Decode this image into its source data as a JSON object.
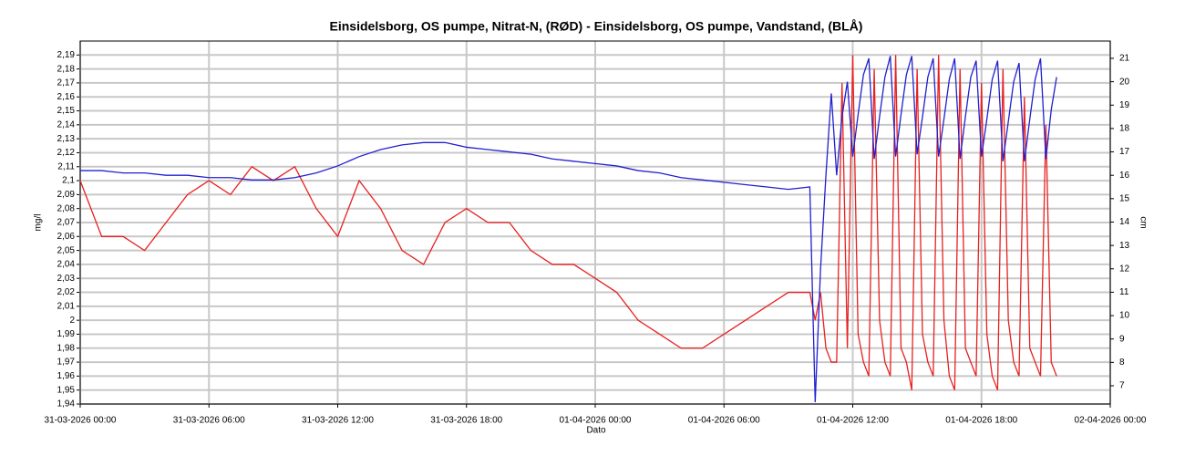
{
  "chart_data": {
    "type": "line",
    "title": "Einsidelsborg, OS pumpe, Nitrat-N, (RØD)  -  Einsidelsborg, OS pumpe, Vandstand, (BLÅ)",
    "xlabel": "Dato",
    "ylabel": "mg/l",
    "y2label": "cm",
    "x": [
      "31-03-2026 00:00",
      "31-03-2026 01:00",
      "31-03-2026 02:00",
      "31-03-2026 03:00",
      "31-03-2026 04:00",
      "31-03-2026 05:00",
      "31-03-2026 06:00",
      "31-03-2026 07:00",
      "31-03-2026 08:00",
      "31-03-2026 09:00",
      "31-03-2026 10:00",
      "31-03-2026 11:00",
      "31-03-2026 12:00",
      "31-03-2026 13:00",
      "31-03-2026 14:00",
      "31-03-2026 15:00",
      "31-03-2026 16:00",
      "31-03-2026 17:00",
      "31-03-2026 18:00",
      "31-03-2026 19:00",
      "31-03-2026 20:00",
      "31-03-2026 21:00",
      "31-03-2026 22:00",
      "31-03-2026 23:00",
      "01-04-2026 00:00",
      "01-04-2026 01:00",
      "01-04-2026 02:00",
      "01-04-2026 03:00",
      "01-04-2026 04:00",
      "01-04-2026 05:00",
      "01-04-2026 06:00",
      "01-04-2026 07:00",
      "01-04-2026 08:00",
      "01-04-2026 09:00",
      "01-04-2026 10:00",
      "01-04-2026 10:15",
      "01-04-2026 10:30",
      "01-04-2026 10:45",
      "01-04-2026 11:00",
      "01-04-2026 11:15",
      "01-04-2026 11:30",
      "01-04-2026 11:45",
      "01-04-2026 12:00",
      "01-04-2026 12:15",
      "01-04-2026 12:30",
      "01-04-2026 12:45",
      "01-04-2026 13:00",
      "01-04-2026 13:15",
      "01-04-2026 13:30",
      "01-04-2026 13:45",
      "01-04-2026 14:00",
      "01-04-2026 14:15",
      "01-04-2026 14:30",
      "01-04-2026 14:45",
      "01-04-2026 15:00",
      "01-04-2026 15:15",
      "01-04-2026 15:30",
      "01-04-2026 15:45",
      "01-04-2026 16:00",
      "01-04-2026 16:15",
      "01-04-2026 16:30",
      "01-04-2026 16:45",
      "01-04-2026 17:00",
      "01-04-2026 17:15",
      "01-04-2026 17:30",
      "01-04-2026 17:45",
      "01-04-2026 18:00",
      "01-04-2026 18:15",
      "01-04-2026 18:30",
      "01-04-2026 18:45",
      "01-04-2026 19:00",
      "01-04-2026 19:15",
      "01-04-2026 19:30",
      "01-04-2026 19:45",
      "01-04-2026 20:00",
      "01-04-2026 20:15",
      "01-04-2026 20:30",
      "01-04-2026 20:45",
      "01-04-2026 21:00",
      "01-04-2026 21:15",
      "01-04-2026 21:30"
    ],
    "series": [
      {
        "color": "#e82020",
        "axis": "y",
        "values": [
          2.1,
          2.06,
          2.06,
          2.05,
          2.07,
          2.09,
          2.1,
          2.09,
          2.11,
          2.1,
          2.11,
          2.08,
          2.06,
          2.1,
          2.08,
          2.05,
          2.04,
          2.07,
          2.08,
          2.07,
          2.07,
          2.05,
          2.04,
          2.04,
          2.03,
          2.02,
          2.0,
          1.99,
          1.98,
          1.98,
          1.99,
          2.0,
          2.01,
          2.02,
          2.02,
          2.0,
          2.02,
          1.98,
          1.97,
          1.97,
          2.17,
          1.98,
          2.19,
          1.99,
          1.97,
          1.96,
          2.18,
          2.0,
          1.97,
          1.96,
          2.19,
          1.98,
          1.97,
          1.95,
          2.18,
          1.99,
          1.97,
          1.96,
          2.19,
          2.0,
          1.96,
          1.95,
          2.18,
          1.98,
          1.97,
          1.96,
          2.17,
          1.99,
          1.96,
          1.95,
          2.18,
          2.0,
          1.97,
          1.96,
          2.16,
          1.98,
          1.97,
          1.96,
          2.14,
          1.97,
          1.96
        ]
      },
      {
        "color": "#2020d0",
        "axis": "y2",
        "values": [
          16.2,
          16.2,
          16.1,
          16.1,
          16.0,
          16.0,
          15.9,
          15.9,
          15.8,
          15.8,
          15.9,
          16.1,
          16.4,
          16.8,
          17.1,
          17.3,
          17.4,
          17.4,
          17.2,
          17.1,
          17.0,
          16.9,
          16.7,
          16.6,
          16.5,
          16.4,
          16.2,
          16.1,
          15.9,
          15.8,
          15.7,
          15.6,
          15.5,
          15.4,
          15.5,
          6.3,
          12,
          16,
          19.5,
          16,
          18.5,
          20,
          16.8,
          18.6,
          20.3,
          21.0,
          16.7,
          18.5,
          20.2,
          21.1,
          16.8,
          18.6,
          20.3,
          21.1,
          16.9,
          18.5,
          20.2,
          21.0,
          16.8,
          18.4,
          20.1,
          21.0,
          16.7,
          18.5,
          20.2,
          20.9,
          16.8,
          18.4,
          20.1,
          20.9,
          16.6,
          18.3,
          20.0,
          20.8,
          16.6,
          18.4,
          20.1,
          21.0,
          16.7,
          18.8,
          20.2
        ]
      }
    ],
    "xlim": [
      "31-03-2026 00:00",
      "02-04-2026 00:00"
    ],
    "xticks": [
      "31-03-2026 00:00",
      "31-03-2026 06:00",
      "31-03-2026 12:00",
      "31-03-2026 18:00",
      "01-04-2026 00:00",
      "01-04-2026 06:00",
      "01-04-2026 12:00",
      "01-04-2026 18:00",
      "02-04-2026 00:00"
    ],
    "ylim": [
      1.94,
      2.2
    ],
    "yticks": [
      {
        "value": 1.94,
        "label": "1,94"
      },
      {
        "value": 1.95,
        "label": "1,95"
      },
      {
        "value": 1.96,
        "label": "1,96"
      },
      {
        "value": 1.97,
        "label": "1,97"
      },
      {
        "value": 1.98,
        "label": "1,98"
      },
      {
        "value": 1.99,
        "label": "1,99"
      },
      2,
      {
        "value": 2.01,
        "label": "2,01"
      },
      {
        "value": 2.02,
        "label": "2,02"
      },
      {
        "value": 2.03,
        "label": "2,03"
      },
      {
        "value": 2.04,
        "label": "2,04"
      },
      {
        "value": 2.05,
        "label": "2,05"
      },
      {
        "value": 2.06,
        "label": "2,06"
      },
      {
        "value": 2.07,
        "label": "2,07"
      },
      {
        "value": 2.08,
        "label": "2,08"
      },
      {
        "value": 2.09,
        "label": "2,09"
      },
      {
        "value": 2.1,
        "label": "2,1"
      },
      {
        "value": 2.11,
        "label": "2,11"
      },
      {
        "value": 2.12,
        "label": "2,12"
      },
      {
        "value": 2.13,
        "label": "2,13"
      },
      {
        "value": 2.14,
        "label": "2,14"
      },
      {
        "value": 2.15,
        "label": "2,15"
      },
      {
        "value": 2.16,
        "label": "2,16"
      },
      {
        "value": 2.17,
        "label": "2,17"
      },
      {
        "value": 2.18,
        "label": "2,18"
      },
      {
        "value": 2.19,
        "label": "2,19"
      }
    ],
    "y2lim": [
      6.22,
      21.74
    ],
    "y2ticks": [
      7,
      8,
      9,
      10,
      11,
      12,
      13,
      14,
      15,
      16,
      17,
      18,
      19,
      20,
      21
    ],
    "grid": true
  }
}
